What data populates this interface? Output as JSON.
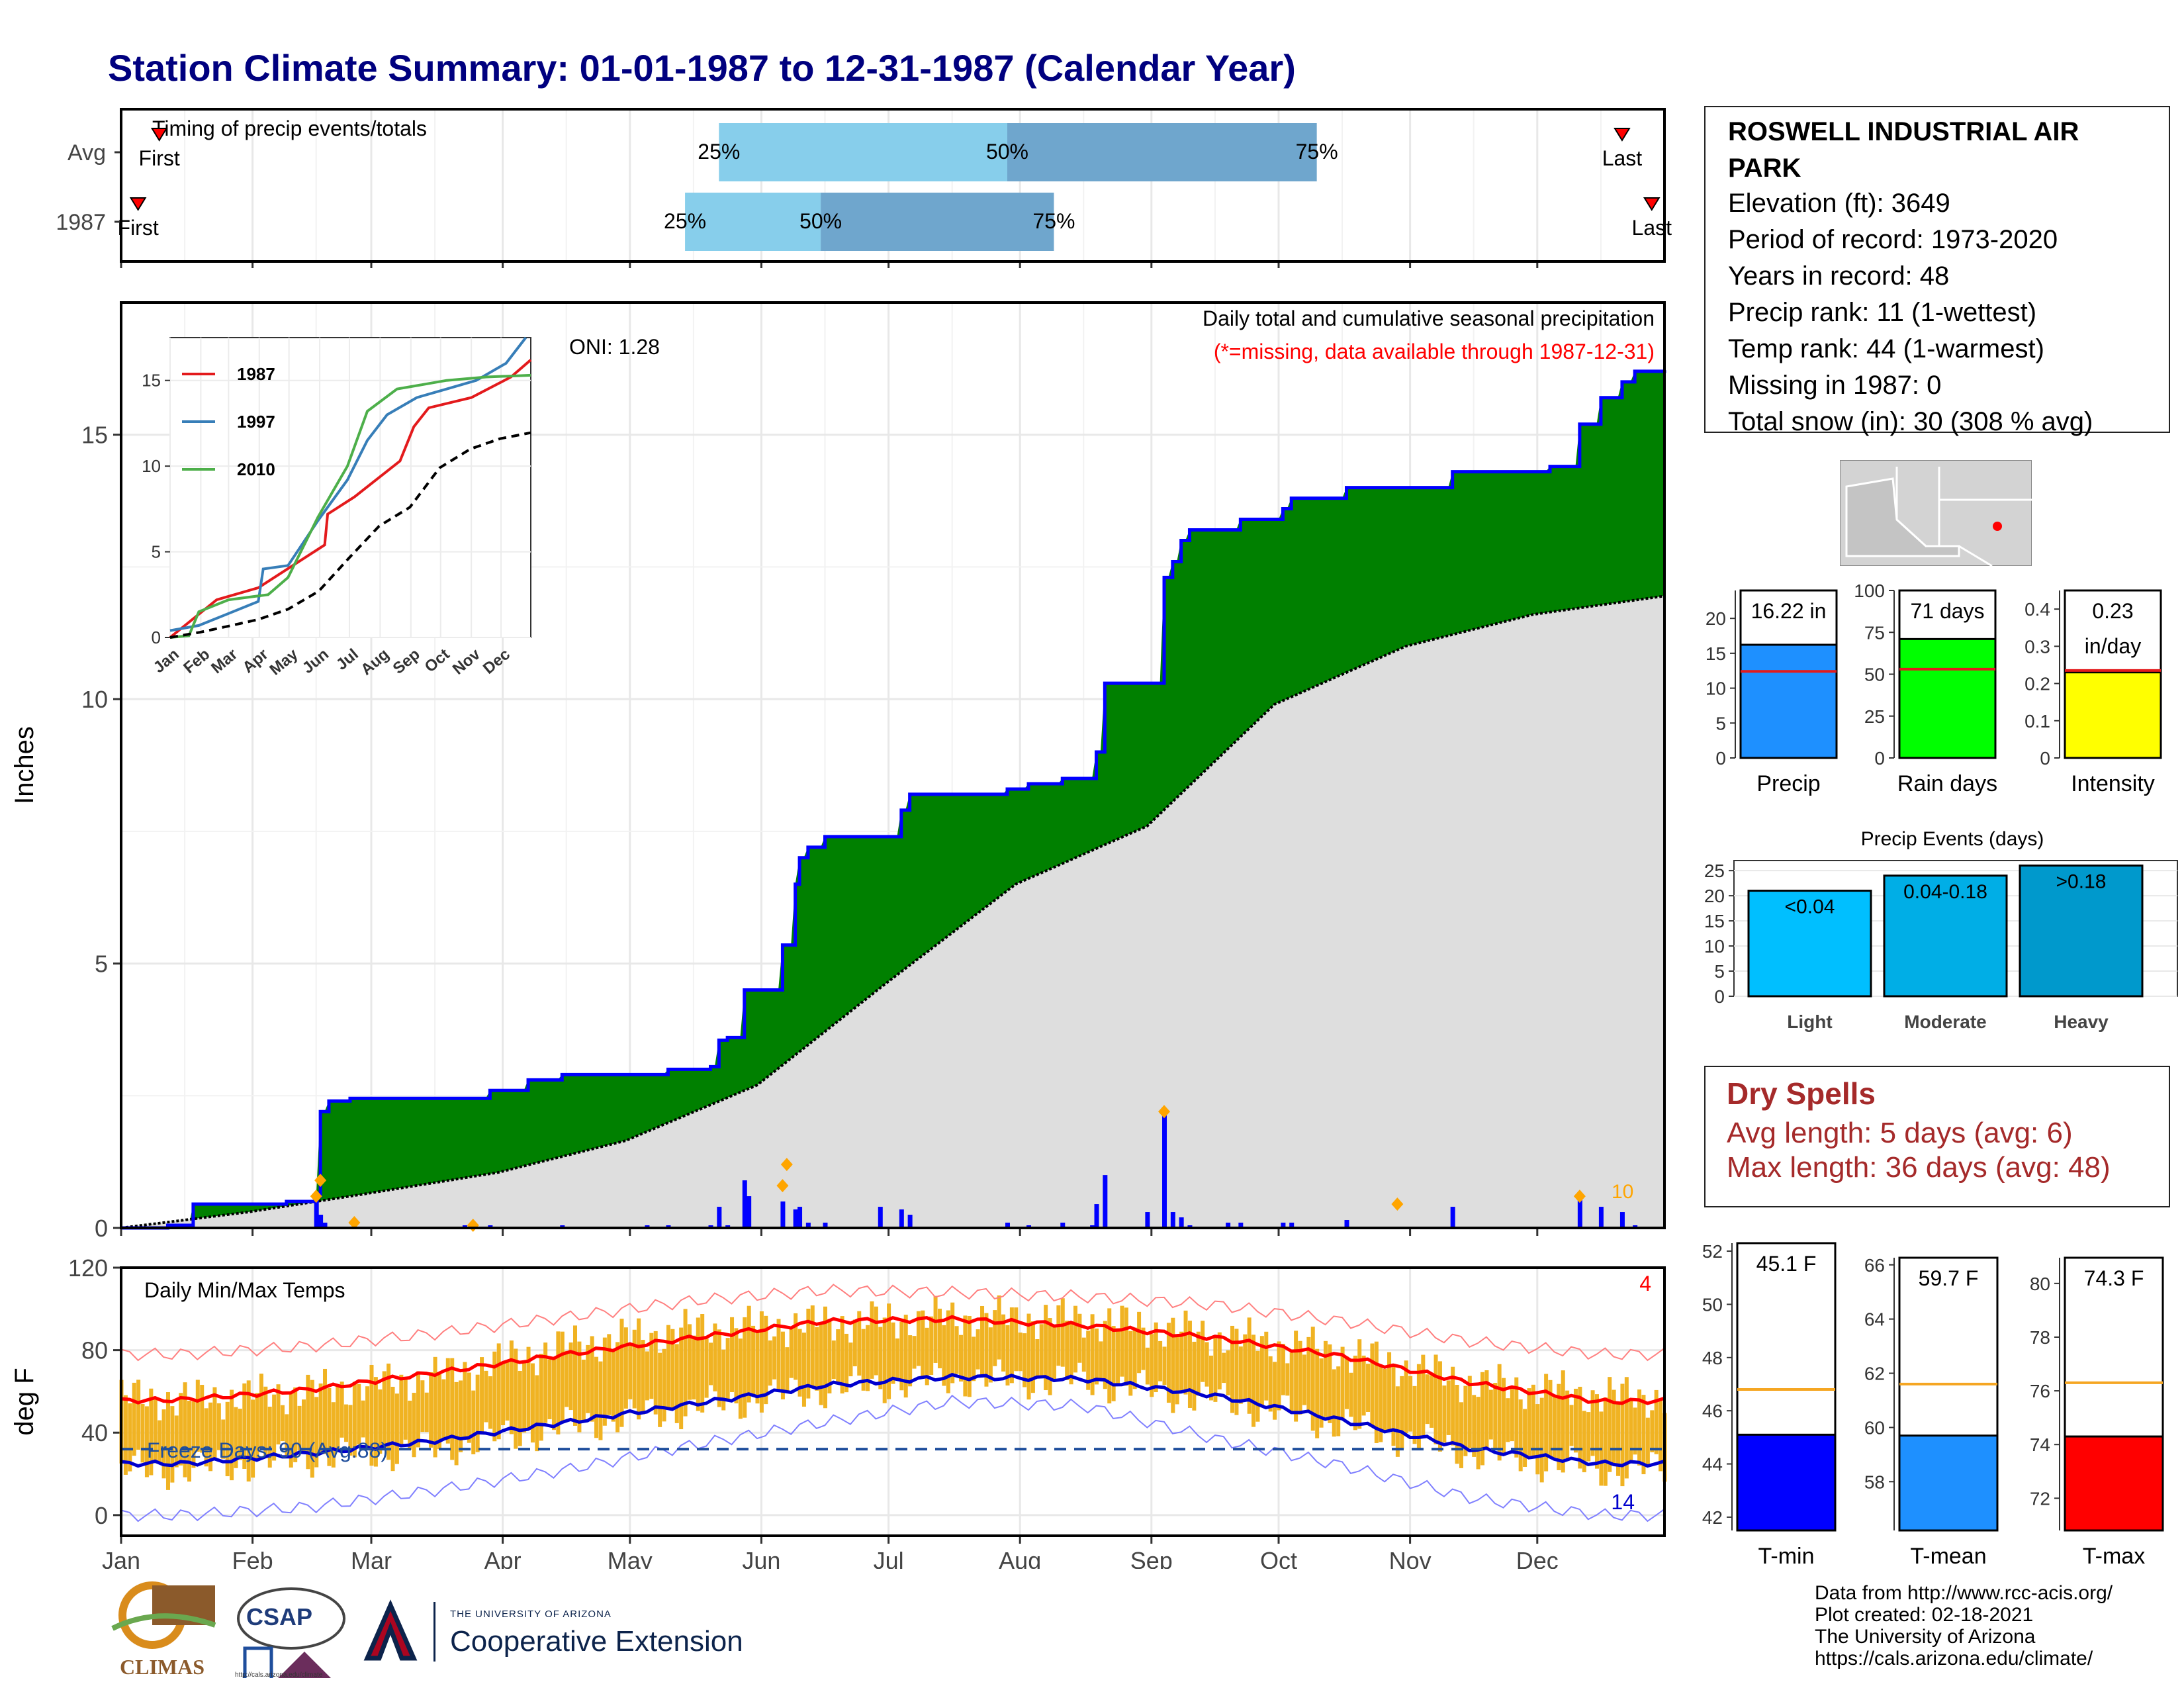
{
  "page": {
    "title": "Station Climate Summary: 01-01-1987 to 12-31-1987 (Calendar Year)"
  },
  "station": {
    "name_line1": "ROSWELL INDUSTRIAL AIR",
    "name_line2": "PARK",
    "elevation": "Elevation (ft): 3649",
    "period": "Period of record: 1973-2020",
    "years": "Years in record: 48",
    "precip_rank": "Precip rank: 11 (1-wettest)",
    "temp_rank": "Temp rank: 44 (1-warmest)",
    "missing": "Missing in 1987: 0",
    "snow": "Total snow (in): 30 (308 % avg)"
  },
  "dry_spells": {
    "title": "Dry Spells",
    "avg": "Avg length: 5 days (avg: 6)",
    "max": "Max length: 36 days (avg: 48)"
  },
  "credits": {
    "line1": "Data from http://www.rcc-acis.org/",
    "line2": "Plot created: 02-18-2021",
    "line3": "The University of Arizona",
    "line4": "https://cals.arizona.edu/climate/"
  },
  "logos": {
    "climas": "CLIMAS",
    "csap": "CSAP",
    "csap_url": "http://cals.arizona.edu/climate",
    "ua_small": "THE UNIVERSITY OF ARIZONA",
    "ua_ext": "Cooperative Extension"
  },
  "colors": {
    "title": "#00007f",
    "precip_1987": "#008000",
    "avg_cumulative": "#dedede",
    "cum_line": "#0000ff",
    "timing_light": "#87ceeb",
    "timing_dark": "#6fa6cd",
    "temp_bar": "#f0b323",
    "tmax_line": "#ff0000",
    "tmin_line": "#0000cd",
    "precip_bar": "#1e90ff",
    "raindays_bar": "#00ff00",
    "intensity_bar": "#ffff00",
    "light_bar": "#00bfff",
    "moderate_bar": "#00aee6",
    "heavy_bar": "#0099cc",
    "tmin_bar": "#0000ff",
    "tmean_bar": "#1e90ff",
    "tmax_bar": "#ff0000",
    "avg_line": "#f5a623",
    "dry_spell": "#a52a2a"
  },
  "chart_data": [
    {
      "id": "timing",
      "type": "bar",
      "title": "Timing of precip events/totals",
      "rows": [
        {
          "label": "Avg",
          "first_day": 10,
          "q25_day": 142,
          "q50_day": 210,
          "q75_day": 283,
          "last_day": 355,
          "labels": {
            "first": "First",
            "q25": "25%",
            "q50": "50%",
            "q75": "75%",
            "last": "Last"
          }
        },
        {
          "label": "1987",
          "first_day": 5,
          "q25_day": 134,
          "q50_day": 166,
          "q75_day": 221,
          "last_day": 362,
          "labels": {
            "first": "First",
            "q25": "25%",
            "q50": "50%",
            "q75": "75%",
            "last": "Last"
          }
        }
      ]
    },
    {
      "id": "cumulative_precip",
      "type": "area",
      "title": "Daily total and cumulative seasonal precipitation",
      "subtitle": "(*=missing, data available through 1987-12-31)",
      "ylabel": "Inches",
      "ylim": [
        0,
        17.5
      ],
      "yticks": [
        0,
        5,
        10,
        15
      ],
      "xticks": [
        "Jan",
        "Feb",
        "Mar",
        "Apr",
        "May",
        "Jun",
        "Jul",
        "Aug",
        "Sep",
        "Oct",
        "Nov",
        "Dec"
      ],
      "annotation": "ONI: 1.28",
      "count_label": "10",
      "series": [
        {
          "name": "1987 cumulative",
          "points": [
            [
              1,
              0.0
            ],
            [
              12,
              0.05
            ],
            [
              18,
              0.45
            ],
            [
              40,
              0.5
            ],
            [
              47,
              0.6
            ],
            [
              48,
              2.2
            ],
            [
              50,
              2.4
            ],
            [
              55,
              2.45
            ],
            [
              82,
              2.45
            ],
            [
              88,
              2.6
            ],
            [
              97,
              2.8
            ],
            [
              105,
              2.9
            ],
            [
              125,
              2.9
            ],
            [
              130,
              3.0
            ],
            [
              140,
              3.05
            ],
            [
              142,
              3.55
            ],
            [
              144,
              3.6
            ],
            [
              148,
              4.5
            ],
            [
              155,
              4.5
            ],
            [
              157,
              5.35
            ],
            [
              160,
              6.5
            ],
            [
              161,
              7.0
            ],
            [
              163,
              7.2
            ],
            [
              167,
              7.4
            ],
            [
              180,
              7.4
            ],
            [
              185,
              7.9
            ],
            [
              187,
              8.2
            ],
            [
              200,
              8.2
            ],
            [
              210,
              8.3
            ],
            [
              215,
              8.4
            ],
            [
              223,
              8.5
            ],
            [
              230,
              8.5
            ],
            [
              231,
              9.0
            ],
            [
              233,
              10.3
            ],
            [
              243,
              10.3
            ],
            [
              247,
              12.3
            ],
            [
              249,
              12.6
            ],
            [
              251,
              13.0
            ],
            [
              253,
              13.2
            ],
            [
              262,
              13.2
            ],
            [
              265,
              13.4
            ],
            [
              275,
              13.6
            ],
            [
              277,
              13.8
            ],
            [
              290,
              14.0
            ],
            [
              305,
              14.0
            ],
            [
              315,
              14.3
            ],
            [
              335,
              14.3
            ],
            [
              338,
              14.4
            ],
            [
              345,
              15.2
            ],
            [
              350,
              15.7
            ],
            [
              355,
              16.0
            ],
            [
              358,
              16.2
            ],
            [
              365,
              16.22
            ]
          ]
        },
        {
          "name": "Avg cumulative",
          "points": [
            [
              1,
              0.0
            ],
            [
              31,
              0.3
            ],
            [
              59,
              0.65
            ],
            [
              90,
              1.05
            ],
            [
              120,
              1.65
            ],
            [
              151,
              2.7
            ],
            [
              181,
              4.6
            ],
            [
              212,
              6.5
            ],
            [
              243,
              7.6
            ],
            [
              273,
              9.9
            ],
            [
              304,
              11.0
            ],
            [
              334,
              11.6
            ],
            [
              365,
              11.95
            ]
          ]
        }
      ],
      "daily_bars": [
        [
          47,
          0.6
        ],
        [
          48,
          0.25
        ],
        [
          49,
          0.1
        ],
        [
          82,
          0.05
        ],
        [
          88,
          0.05
        ],
        [
          105,
          0.05
        ],
        [
          125,
          0.05
        ],
        [
          130,
          0.05
        ],
        [
          140,
          0.05
        ],
        [
          142,
          0.4
        ],
        [
          144,
          0.05
        ],
        [
          148,
          0.9
        ],
        [
          149,
          0.6
        ],
        [
          157,
          0.5
        ],
        [
          160,
          0.35
        ],
        [
          161,
          0.4
        ],
        [
          163,
          0.1
        ],
        [
          167,
          0.1
        ],
        [
          180,
          0.4
        ],
        [
          185,
          0.35
        ],
        [
          187,
          0.25
        ],
        [
          210,
          0.1
        ],
        [
          215,
          0.05
        ],
        [
          223,
          0.1
        ],
        [
          230,
          0.05
        ],
        [
          231,
          0.45
        ],
        [
          233,
          1.0
        ],
        [
          243,
          0.3
        ],
        [
          247,
          2.2
        ],
        [
          249,
          0.3
        ],
        [
          251,
          0.2
        ],
        [
          253,
          0.05
        ],
        [
          262,
          0.1
        ],
        [
          265,
          0.1
        ],
        [
          275,
          0.1
        ],
        [
          277,
          0.1
        ],
        [
          290,
          0.15
        ],
        [
          315,
          0.4
        ],
        [
          345,
          0.6
        ],
        [
          350,
          0.4
        ],
        [
          355,
          0.3
        ],
        [
          358,
          0.05
        ]
      ],
      "extreme_markers": [
        [
          47,
          0.6
        ],
        [
          48,
          0.9
        ],
        [
          56,
          0.1
        ],
        [
          84,
          0.05
        ],
        [
          157,
          0.8
        ],
        [
          158,
          1.2
        ],
        [
          247,
          2.2
        ],
        [
          302,
          0.45
        ],
        [
          345,
          0.6
        ]
      ]
    },
    {
      "id": "inset_cumulative",
      "type": "line",
      "ylim": [
        0,
        17.5
      ],
      "yticks": [
        0,
        5,
        10,
        15
      ],
      "xticks": [
        "Jan",
        "Feb",
        "Mar",
        "Apr",
        "May",
        "Jun",
        "Jul",
        "Aug",
        "Sep",
        "Oct",
        "Nov",
        "Dec"
      ],
      "series": [
        {
          "name": "1987",
          "points": [
            [
              1,
              0
            ],
            [
              48,
              2.2
            ],
            [
              90,
              2.9
            ],
            [
              157,
              5.4
            ],
            [
              160,
              7.2
            ],
            [
              187,
              8.2
            ],
            [
              233,
              10.3
            ],
            [
              247,
              12.3
            ],
            [
              262,
              13.4
            ],
            [
              305,
              14.0
            ],
            [
              345,
              15.2
            ],
            [
              365,
              16.2
            ]
          ]
        },
        {
          "name": "1997",
          "points": [
            [
              1,
              0.4
            ],
            [
              30,
              0.7
            ],
            [
              60,
              1.4
            ],
            [
              90,
              2.1
            ],
            [
              95,
              4.0
            ],
            [
              120,
              4.2
            ],
            [
              150,
              6.8
            ],
            [
              180,
              9.2
            ],
            [
              200,
              11.5
            ],
            [
              220,
              13.0
            ],
            [
              250,
              14.0
            ],
            [
              280,
              14.5
            ],
            [
              310,
              15.0
            ],
            [
              340,
              16.0
            ],
            [
              360,
              17.5
            ]
          ]
        },
        {
          "name": "2010",
          "points": [
            [
              1,
              0
            ],
            [
              20,
              0.1
            ],
            [
              30,
              1.5
            ],
            [
              60,
              2.2
            ],
            [
              100,
              2.5
            ],
            [
              120,
              3.5
            ],
            [
              150,
              7.0
            ],
            [
              165,
              8.5
            ],
            [
              180,
              10.0
            ],
            [
              200,
              13.2
            ],
            [
              230,
              14.5
            ],
            [
              280,
              15.0
            ],
            [
              320,
              15.2
            ],
            [
              365,
              15.3
            ]
          ]
        },
        {
          "name": "Average",
          "points": [
            [
              1,
              0
            ],
            [
              31,
              0.3
            ],
            [
              59,
              0.65
            ],
            [
              90,
              1.05
            ],
            [
              120,
              1.65
            ],
            [
              151,
              2.7
            ],
            [
              181,
              4.6
            ],
            [
              212,
              6.5
            ],
            [
              243,
              7.6
            ],
            [
              273,
              9.9
            ],
            [
              304,
              11.0
            ],
            [
              334,
              11.6
            ],
            [
              365,
              11.95
            ]
          ]
        }
      ]
    },
    {
      "id": "temps",
      "type": "line",
      "title": "Daily Min/Max Temps",
      "ylabel": "deg F",
      "ylim": [
        -10,
        120
      ],
      "yticks": [
        0,
        40,
        80,
        120
      ],
      "xticks": [
        "Jan",
        "Feb",
        "Mar",
        "Apr",
        "May",
        "Jun",
        "Jul",
        "Aug",
        "Sep",
        "Oct",
        "Nov",
        "Dec"
      ],
      "freeze_label": "Freeze Days: 90 (Avg:88)",
      "freeze_line": 32,
      "count_top": "4",
      "count_bottom": "14",
      "monthly": {
        "avg_max": [
          56,
          61,
          69,
          78,
          86,
          94,
          95,
          92,
          86,
          77,
          64,
          55
        ],
        "avg_min": [
          25,
          30,
          36,
          45,
          54,
          63,
          67,
          66,
          58,
          46,
          32,
          25
        ],
        "rec_max": [
          78,
          82,
          88,
          96,
          104,
          109,
          108,
          106,
          102,
          94,
          84,
          78
        ],
        "rec_min": [
          0,
          4,
          12,
          22,
          34,
          45,
          55,
          53,
          37,
          24,
          8,
          0
        ],
        "obs_max_1987": [
          56,
          60,
          67,
          82,
          90,
          93,
          96,
          95,
          87,
          79,
          64,
          58
        ],
        "obs_min_1987": [
          22,
          28,
          32,
          43,
          52,
          61,
          66,
          65,
          56,
          44,
          30,
          22
        ]
      }
    },
    {
      "id": "totals",
      "type": "bar",
      "categories": [
        "Precip",
        "Rain days",
        "Intensity"
      ],
      "panels": [
        {
          "label": "Precip",
          "value": 16.22,
          "avg": 12.4,
          "text": "16.22 in",
          "ylim": [
            0,
            24
          ],
          "yticks": [
            0,
            5,
            10,
            15,
            20
          ]
        },
        {
          "label": "Rain days",
          "value": 71,
          "avg": 53,
          "text": "71 days",
          "ylim": [
            0,
            100
          ],
          "yticks": [
            0,
            25,
            50,
            75,
            100
          ]
        },
        {
          "label": "Intensity",
          "value": 0.23,
          "avg": 0.235,
          "text": "0.23",
          "text2": "in/day",
          "ylim": [
            0,
            0.45
          ],
          "yticks": [
            0.0,
            0.1,
            0.2,
            0.3,
            0.4
          ]
        }
      ]
    },
    {
      "id": "precip_events",
      "type": "bar",
      "title": "Precip Events (days)",
      "categories": [
        "Light",
        "Moderate",
        "Heavy"
      ],
      "values": [
        21,
        24,
        26
      ],
      "labels": [
        "<0.04",
        "0.04-0.18",
        ">0.18"
      ],
      "ylim": [
        0,
        27
      ],
      "yticks": [
        0,
        5,
        10,
        15,
        20,
        25
      ]
    },
    {
      "id": "temp_means",
      "type": "bar",
      "categories": [
        "T-min",
        "T-mean",
        "T-max"
      ],
      "panels": [
        {
          "label": "T-min",
          "value": 45.1,
          "avg": 46.8,
          "text": "45.1 F",
          "ylim": [
            41.5,
            52.3
          ],
          "yticks": [
            42,
            44,
            46,
            48,
            50,
            52
          ]
        },
        {
          "label": "T-mean",
          "value": 59.7,
          "avg": 61.6,
          "text": "59.7 F",
          "ylim": [
            56.2,
            66.8
          ],
          "yticks": [
            58,
            60,
            62,
            64,
            66
          ]
        },
        {
          "label": "T-max",
          "value": 74.3,
          "avg": 76.3,
          "text": "74.3 F",
          "ylim": [
            70.8,
            81.5
          ],
          "yticks": [
            72,
            74,
            76,
            78,
            80
          ]
        }
      ]
    }
  ]
}
